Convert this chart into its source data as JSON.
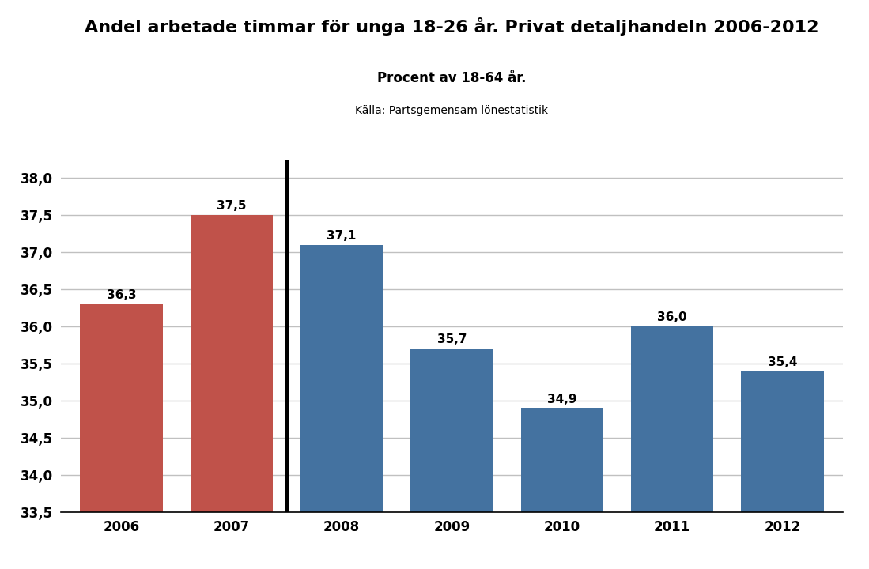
{
  "title": "Andel arbetade timmar för unga 18-26 år. Privat detaljhandeln 2006-2012",
  "subtitle": "Procent av 18-64 år.",
  "source": "Källa: Partsgemensam lönestatistik",
  "categories": [
    "2006",
    "2007",
    "2008",
    "2009",
    "2010",
    "2011",
    "2012"
  ],
  "values": [
    36.3,
    37.5,
    37.1,
    35.7,
    34.9,
    36.0,
    35.4
  ],
  "bar_colors": [
    "#c0524a",
    "#c0524a",
    "#4472a0",
    "#4472a0",
    "#4472a0",
    "#4472a0",
    "#4472a0"
  ],
  "ylim_min": 33.5,
  "ylim_max": 38.25,
  "ytick_min": 33.5,
  "ytick_max": 38.0,
  "ytick_step": 0.5,
  "bar_width": 0.75,
  "value_label_fontsize": 11,
  "title_fontsize": 16,
  "subtitle_fontsize": 12,
  "source_fontsize": 10,
  "xtick_fontsize": 12,
  "ytick_fontsize": 12,
  "background_color": "#ffffff",
  "grid_color": "#c0c0c0",
  "grid_linewidth": 1.0
}
